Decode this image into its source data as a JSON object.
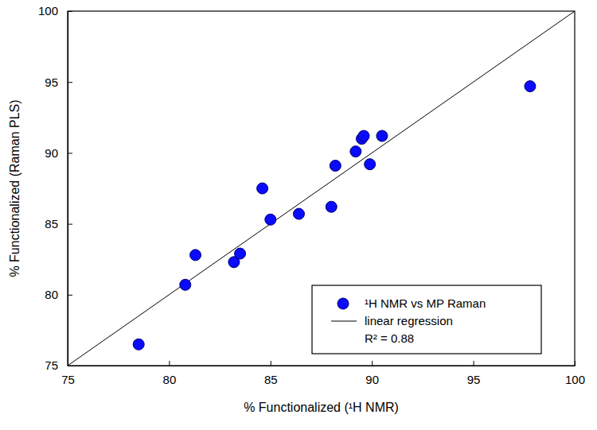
{
  "chart_data": {
    "type": "scatter",
    "x_label": "% Functionalized (¹H NMR)",
    "y_label": "% Functionalized (Raman PLS)",
    "xlim": [
      75,
      100
    ],
    "ylim": [
      75,
      100
    ],
    "xticks": [
      75,
      80,
      85,
      90,
      95,
      100
    ],
    "yticks": [
      75,
      80,
      85,
      90,
      95,
      100
    ],
    "legend": "lower right",
    "series": [
      {
        "name": "¹H NMR vs MP Raman",
        "type": "scatter",
        "marker": "circle",
        "color": "#0a0aff",
        "x": [
          78.5,
          80.8,
          81.3,
          83.2,
          83.5,
          84.6,
          85.0,
          86.4,
          88.0,
          88.2,
          89.2,
          89.5,
          89.6,
          89.9,
          90.5,
          97.8
        ],
        "values": [
          76.5,
          80.7,
          82.8,
          82.3,
          82.9,
          87.5,
          85.3,
          85.7,
          86.2,
          89.1,
          90.1,
          91.0,
          91.2,
          89.2,
          91.2,
          94.7
        ]
      },
      {
        "name": "linear regression",
        "type": "line",
        "line_style": "solid",
        "color": "#000000",
        "x": [
          75,
          100
        ],
        "values": [
          75,
          100
        ]
      }
    ],
    "annotations": [
      "R² = 0.88"
    ]
  }
}
